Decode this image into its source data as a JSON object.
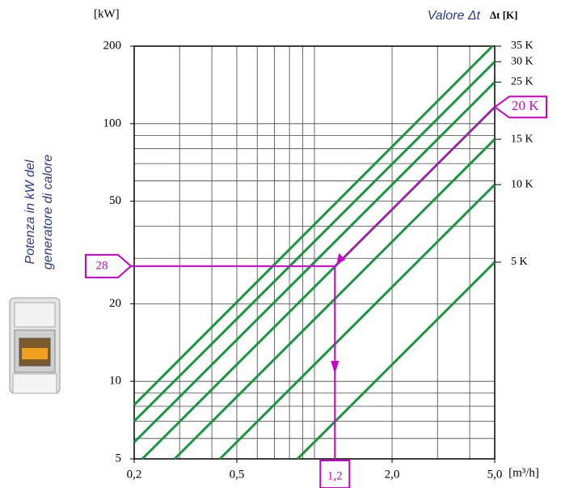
{
  "chart_data": {
    "type": "line",
    "y_unit_label": "[kW]",
    "x_unit_label": "[m³/h]",
    "legend_title": "Valore Δt",
    "legend_unit": "Δt [K]",
    "y_axis_label": [
      "Potenza in kW del",
      "generatore di calore"
    ],
    "log_x": true,
    "log_y": true,
    "grid": true,
    "xlim": [
      0.2,
      5.0
    ],
    "ylim": [
      5,
      200
    ],
    "xticks": [
      {
        "value": 0.2,
        "label": "0,2"
      },
      {
        "value": 0.5,
        "label": "0,5"
      },
      {
        "value": 1.2,
        "label": "1,2"
      },
      {
        "value": 2.0,
        "label": "2,0"
      },
      {
        "value": 5.0,
        "label": "5,0"
      }
    ],
    "yticks": [
      5,
      10,
      20,
      50,
      100,
      200
    ],
    "xgrid": [
      0.3,
      0.4,
      0.5,
      0.6,
      0.7,
      0.8,
      0.9,
      1,
      2,
      3,
      4
    ],
    "ygrid": [
      6,
      7,
      8,
      9,
      10,
      20,
      30,
      40,
      50,
      60,
      70,
      80,
      90,
      100
    ],
    "series": [
      {
        "name": "35 K",
        "color": "#1a9640",
        "x": [
          0.2,
          4.9
        ],
        "values": [
          8.1,
          200
        ]
      },
      {
        "name": "30 K",
        "color": "#1a9640",
        "x": [
          0.2,
          5.0
        ],
        "values": [
          7.0,
          174
        ]
      },
      {
        "name": "25 K",
        "color": "#1a9640",
        "x": [
          0.2,
          5.0
        ],
        "values": [
          5.8,
          145
        ]
      },
      {
        "name": "20 K",
        "color": "#1a9640",
        "x": [
          0.215,
          5.0
        ],
        "values": [
          5,
          116
        ]
      },
      {
        "name": "15 K",
        "color": "#1a9640",
        "x": [
          0.287,
          5.0
        ],
        "values": [
          5,
          87
        ]
      },
      {
        "name": "10 K",
        "color": "#1a9640",
        "x": [
          0.43,
          5.0
        ],
        "values": [
          5,
          58
        ]
      },
      {
        "name": "5 K",
        "color": "#1a9640",
        "x": [
          0.86,
          5.0
        ],
        "values": [
          5,
          29
        ]
      }
    ],
    "highlight_series": 3,
    "highlight_tick": 2,
    "example": {
      "flow": 1.2,
      "power": 28,
      "color": "#cc00cc"
    }
  }
}
